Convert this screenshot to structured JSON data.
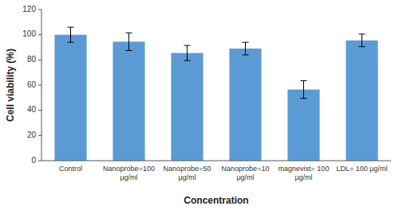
{
  "chart_data": {
    "type": "bar",
    "categories": [
      "Control",
      "Nanoprobe=100\nμg/ml",
      "Nanoprobe=50\nμg/ml",
      "Nanoprobe=10\nμg/ml",
      "magnevist= 100\nμg/ml",
      "LDL= 100 μg/ml"
    ],
    "values": [
      100,
      94.5,
      85.5,
      89,
      56.5,
      95.5
    ],
    "errors": [
      6,
      7,
      6,
      5,
      7,
      5
    ],
    "color": "#5B9BD5",
    "xlabel": "Concentration",
    "ylabel": "Cell viability (%)",
    "ylim": [
      0,
      120
    ],
    "yticks": [
      0,
      20,
      40,
      60,
      80,
      100,
      120
    ],
    "grid": false
  }
}
